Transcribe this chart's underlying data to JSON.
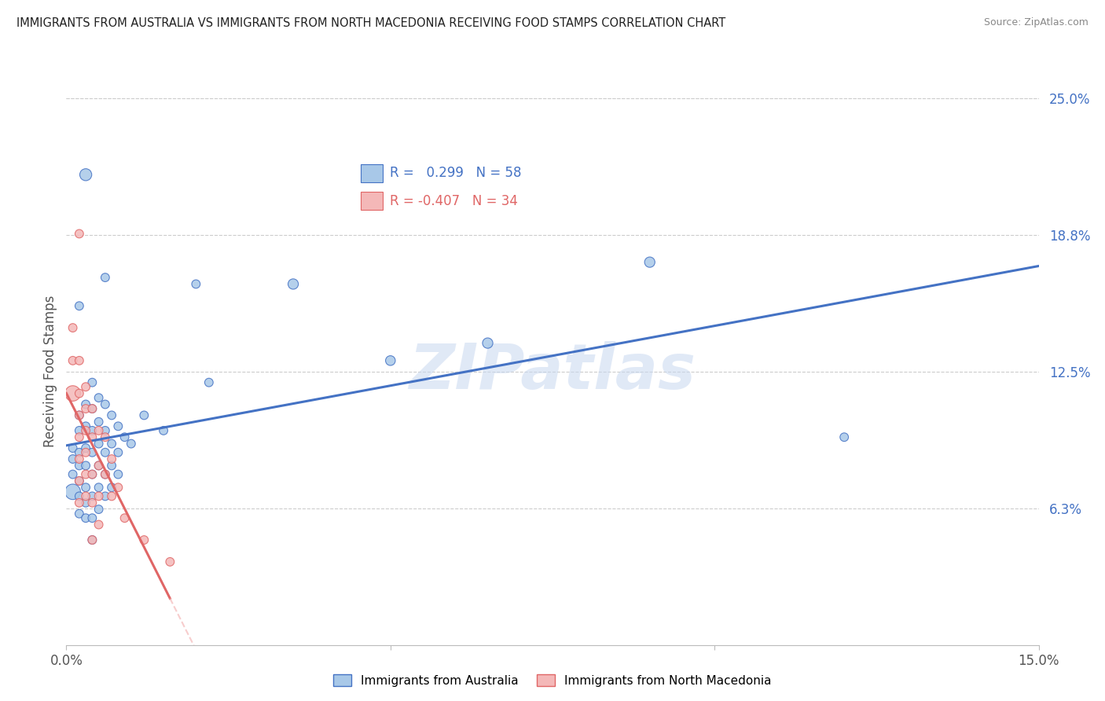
{
  "title": "IMMIGRANTS FROM AUSTRALIA VS IMMIGRANTS FROM NORTH MACEDONIA RECEIVING FOOD STAMPS CORRELATION CHART",
  "source": "Source: ZipAtlas.com",
  "ylabel": "Receiving Food Stamps",
  "xlim": [
    0.0,
    0.15
  ],
  "ylim": [
    0.0,
    0.25
  ],
  "legend_r_australia": "0.299",
  "legend_n_australia": "58",
  "legend_r_macedonia": "-0.407",
  "legend_n_macedonia": "34",
  "color_australia": "#a8c8e8",
  "color_australia_line": "#4472c4",
  "color_macedonia": "#f4b8b8",
  "color_macedonia_line": "#e06666",
  "watermark": "ZIPatlas",
  "background_color": "#ffffff",
  "australia_points": [
    [
      0.001,
      0.09
    ],
    [
      0.001,
      0.085
    ],
    [
      0.001,
      0.078
    ],
    [
      0.001,
      0.07
    ],
    [
      0.002,
      0.155
    ],
    [
      0.002,
      0.105
    ],
    [
      0.002,
      0.098
    ],
    [
      0.002,
      0.088
    ],
    [
      0.002,
      0.082
    ],
    [
      0.002,
      0.075
    ],
    [
      0.002,
      0.068
    ],
    [
      0.002,
      0.06
    ],
    [
      0.003,
      0.215
    ],
    [
      0.003,
      0.11
    ],
    [
      0.003,
      0.1
    ],
    [
      0.003,
      0.09
    ],
    [
      0.003,
      0.082
    ],
    [
      0.003,
      0.072
    ],
    [
      0.003,
      0.065
    ],
    [
      0.003,
      0.058
    ],
    [
      0.004,
      0.12
    ],
    [
      0.004,
      0.108
    ],
    [
      0.004,
      0.098
    ],
    [
      0.004,
      0.088
    ],
    [
      0.004,
      0.078
    ],
    [
      0.004,
      0.068
    ],
    [
      0.004,
      0.058
    ],
    [
      0.004,
      0.048
    ],
    [
      0.005,
      0.113
    ],
    [
      0.005,
      0.102
    ],
    [
      0.005,
      0.092
    ],
    [
      0.005,
      0.082
    ],
    [
      0.005,
      0.072
    ],
    [
      0.005,
      0.062
    ],
    [
      0.006,
      0.168
    ],
    [
      0.006,
      0.11
    ],
    [
      0.006,
      0.098
    ],
    [
      0.006,
      0.088
    ],
    [
      0.006,
      0.078
    ],
    [
      0.006,
      0.068
    ],
    [
      0.007,
      0.105
    ],
    [
      0.007,
      0.092
    ],
    [
      0.007,
      0.082
    ],
    [
      0.007,
      0.072
    ],
    [
      0.008,
      0.1
    ],
    [
      0.008,
      0.088
    ],
    [
      0.008,
      0.078
    ],
    [
      0.009,
      0.095
    ],
    [
      0.01,
      0.092
    ],
    [
      0.012,
      0.105
    ],
    [
      0.015,
      0.098
    ],
    [
      0.02,
      0.165
    ],
    [
      0.022,
      0.12
    ],
    [
      0.035,
      0.165
    ],
    [
      0.05,
      0.13
    ],
    [
      0.065,
      0.138
    ],
    [
      0.09,
      0.175
    ],
    [
      0.12,
      0.095
    ]
  ],
  "macedonia_points": [
    [
      0.001,
      0.145
    ],
    [
      0.001,
      0.13
    ],
    [
      0.001,
      0.115
    ],
    [
      0.002,
      0.188
    ],
    [
      0.002,
      0.13
    ],
    [
      0.002,
      0.115
    ],
    [
      0.002,
      0.105
    ],
    [
      0.002,
      0.095
    ],
    [
      0.002,
      0.085
    ],
    [
      0.002,
      0.075
    ],
    [
      0.002,
      0.065
    ],
    [
      0.003,
      0.118
    ],
    [
      0.003,
      0.108
    ],
    [
      0.003,
      0.098
    ],
    [
      0.003,
      0.088
    ],
    [
      0.003,
      0.078
    ],
    [
      0.003,
      0.068
    ],
    [
      0.004,
      0.108
    ],
    [
      0.004,
      0.095
    ],
    [
      0.004,
      0.078
    ],
    [
      0.004,
      0.065
    ],
    [
      0.004,
      0.048
    ],
    [
      0.005,
      0.098
    ],
    [
      0.005,
      0.082
    ],
    [
      0.005,
      0.068
    ],
    [
      0.005,
      0.055
    ],
    [
      0.006,
      0.095
    ],
    [
      0.006,
      0.078
    ],
    [
      0.007,
      0.085
    ],
    [
      0.007,
      0.068
    ],
    [
      0.008,
      0.072
    ],
    [
      0.009,
      0.058
    ],
    [
      0.012,
      0.048
    ],
    [
      0.016,
      0.038
    ]
  ],
  "australia_sizes": [
    60,
    60,
    60,
    200,
    60,
    60,
    60,
    60,
    60,
    60,
    60,
    60,
    120,
    60,
    60,
    60,
    60,
    60,
    60,
    60,
    60,
    60,
    60,
    60,
    60,
    60,
    60,
    60,
    60,
    60,
    60,
    60,
    60,
    60,
    60,
    60,
    60,
    60,
    60,
    60,
    60,
    60,
    60,
    60,
    60,
    60,
    60,
    60,
    60,
    60,
    60,
    60,
    60,
    90,
    80,
    90,
    90,
    60
  ],
  "macedonia_sizes": [
    60,
    60,
    200,
    60,
    60,
    60,
    60,
    60,
    60,
    60,
    60,
    60,
    60,
    60,
    60,
    60,
    60,
    60,
    60,
    60,
    60,
    60,
    60,
    60,
    60,
    60,
    60,
    60,
    60,
    60,
    60,
    60,
    60,
    60
  ]
}
